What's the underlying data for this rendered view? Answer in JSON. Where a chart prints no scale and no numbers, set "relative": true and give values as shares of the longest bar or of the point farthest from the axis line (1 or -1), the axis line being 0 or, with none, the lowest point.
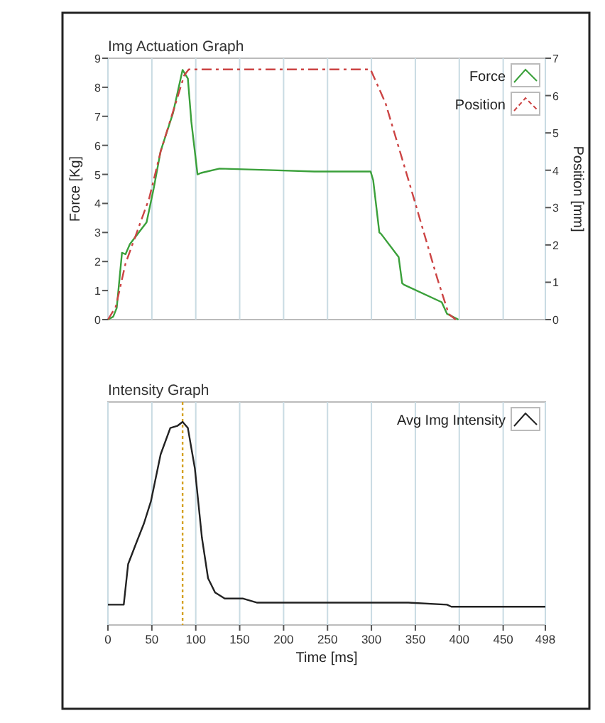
{
  "chart_data": [
    {
      "type": "line",
      "title": "Img Actuation Graph",
      "ylabel": "Force [Kg]",
      "y2label": "Position [mm]",
      "xlim": [
        0,
        498
      ],
      "xticks": [
        0,
        50,
        100,
        150,
        200,
        250,
        300,
        350,
        400,
        450,
        498
      ],
      "ylim": [
        0,
        9
      ],
      "yticks": [
        0,
        1,
        2,
        3,
        4,
        5,
        6,
        7,
        8,
        9
      ],
      "y2lim": [
        0,
        7
      ],
      "y2ticks": [
        0,
        1,
        2,
        3,
        4,
        5,
        6,
        7
      ],
      "grid": "x",
      "legend": "top right",
      "tick_labels": "y",
      "series": [
        {
          "name": "Force",
          "color": "#3aa03a",
          "line_style": "solid",
          "x": [
            0,
            6,
            10,
            16,
            20,
            25,
            44,
            52,
            60,
            74,
            85,
            91,
            95,
            102,
            106,
            127,
            181,
            235,
            299,
            302,
            309,
            311,
            331,
            335,
            337,
            380,
            386,
            396,
            399
          ],
          "values": [
            0,
            0.1,
            0.4,
            2.3,
            2.25,
            2.6,
            3.35,
            4.5,
            5.8,
            7.1,
            8.6,
            8.3,
            6.8,
            5.0,
            5.05,
            5.2,
            5.15,
            5.1,
            5.1,
            4.8,
            3.0,
            2.95,
            2.15,
            1.25,
            1.2,
            0.6,
            0.2,
            0.05,
            0
          ]
        },
        {
          "name": "Position",
          "color": "#cc4444",
          "line_style": "dashed",
          "axis": "y2",
          "x": [
            0,
            9,
            20,
            47,
            60,
            87,
            92,
            101,
            299,
            316,
            342,
            375,
            388,
            396
          ],
          "values": [
            0,
            0.35,
            1.5,
            3.25,
            4.5,
            6.55,
            6.7,
            6.7,
            6.7,
            5.8,
            3.75,
            1.1,
            0.15,
            0
          ]
        }
      ]
    },
    {
      "type": "line",
      "title": "Intensity Graph",
      "xlabel": "Time [ms]",
      "xlim": [
        0,
        498
      ],
      "xticks": [
        0,
        50,
        100,
        150,
        200,
        250,
        300,
        350,
        400,
        450,
        498
      ],
      "relative": true,
      "grid": "x",
      "legend": "top right",
      "tick_labels": "x",
      "ref_lines": [
        {
          "axis": "x",
          "value": 85,
          "color": "#d4a020",
          "line_style": "dotted"
        }
      ],
      "series": [
        {
          "name": "Avg Img Intensity",
          "color": "#222222",
          "line_style": "solid",
          "x": [
            0,
            18,
            23,
            31,
            41,
            49,
            60,
            71,
            79,
            85,
            91,
            99,
            107,
            114,
            122,
            133,
            154,
            170,
            197,
            229,
            342,
            386,
            391,
            498
          ],
          "values": [
            0.1,
            0.1,
            0.3,
            0.39,
            0.5,
            0.61,
            0.84,
            0.97,
            0.98,
            1,
            0.97,
            0.77,
            0.43,
            0.23,
            0.16,
            0.13,
            0.13,
            0.11,
            0.11,
            0.11,
            0.11,
            0.1,
            0.09,
            0.09
          ]
        }
      ]
    }
  ]
}
